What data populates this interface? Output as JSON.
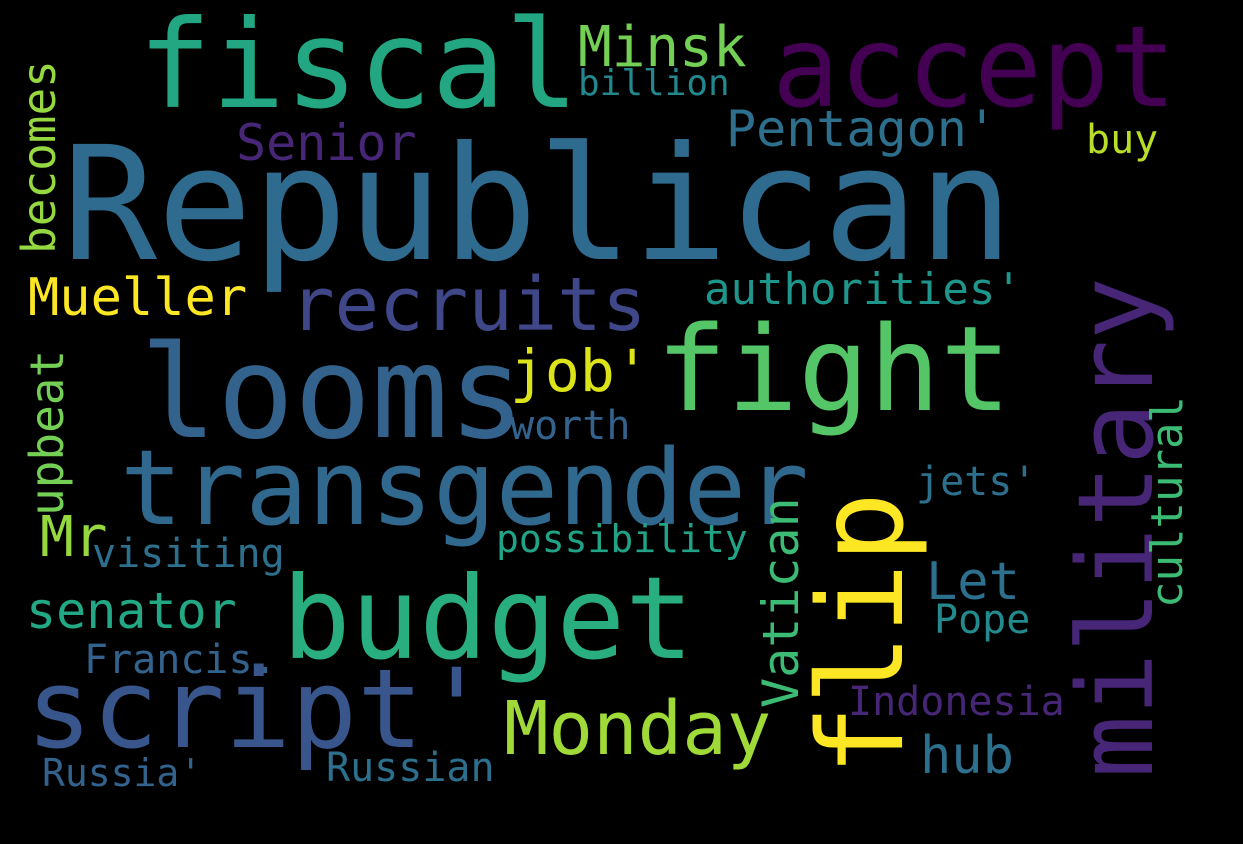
{
  "words": {
    "republican": "Republican",
    "fiscal": "fiscal",
    "accept": "accept",
    "minsk": "Minsk",
    "billion": "billion",
    "senior": "Senior",
    "pentagon": "Pentagon'",
    "buy": "buy",
    "becomes": "becomes",
    "mueller": "Mueller",
    "recruits": "recruits",
    "authorities": "authorities'",
    "military": "military",
    "looms": "looms",
    "fight": "fight",
    "job": "job'",
    "worth": "worth",
    "upbeat": "upbeat",
    "cultural": "cultural",
    "transgender": "transgender",
    "jets": "jets'",
    "mr": "Mr",
    "visiting": "visiting",
    "possibility": "possibility",
    "vatican": "Vatican",
    "flip": "flip",
    "budget": "budget",
    "let": "Let",
    "senator": "senator",
    "pope": "Pope",
    "francis": "Francis.",
    "script": "script'",
    "indonesia": "Indonesia",
    "monday": "Monday",
    "hub": "hub",
    "russia": "Russia'",
    "russian": "Russian"
  },
  "colors": {
    "background": "#000000",
    "dark_purple": "#440154",
    "purple": "#482677",
    "indigo": "#404788",
    "blue": "#33638d",
    "steel_blue": "#2d708e",
    "teal": "#238a8d",
    "teal_green": "#1f968b",
    "green": "#29af7f",
    "light_green": "#55c667",
    "lime": "#95d840",
    "yellow_green": "#b8de29",
    "yellow": "#fde725"
  }
}
